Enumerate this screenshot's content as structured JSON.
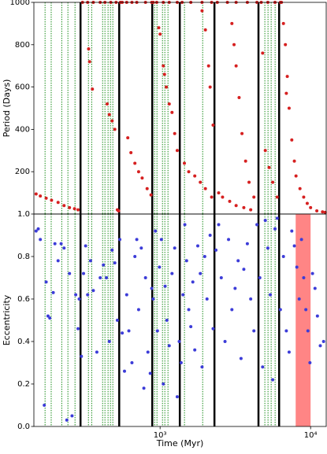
{
  "chart_data": [
    {
      "type": "scatter",
      "ylabel": "Period (Days)",
      "xscale": "log",
      "xlim": [
        145,
        12700
      ],
      "ylim": [
        0,
        1000
      ],
      "yticks": [
        200,
        400,
        600,
        800,
        1000
      ],
      "vlines_black": [
        296,
        535,
        887,
        1352,
        2297,
        4505,
        6180
      ],
      "vlines_green": [
        172,
        189,
        222,
        244,
        272,
        334,
        351,
        415,
        430,
        451,
        468,
        485,
        919,
        953,
        1037,
        1075,
        1128,
        1452,
        1918,
        4966,
        5212,
        5470,
        5810
      ],
      "series": [
        {
          "color": "#d62020",
          "x": [
            150,
            160,
            175,
            190,
            210,
            230,
            250,
            270,
            285,
            305,
            330,
            360,
            400,
            430,
            470,
            510,
            520,
            530,
            335,
            340,
            355,
            445,
            460,
            480,
            500,
            545,
            560,
            600,
            650,
            700,
            800,
            880,
            610,
            640,
            680,
            720,
            760,
            820,
            870,
            900,
            950,
            1050,
            1150,
            1300,
            980,
            1000,
            1050,
            1070,
            1100,
            1150,
            1200,
            1250,
            1300,
            1400,
            1600,
            1900,
            2200,
            1450,
            1550,
            1700,
            1850,
            2000,
            2200,
            1900,
            2000,
            2100,
            2150,
            2250,
            2400,
            2800,
            3200,
            3800,
            4400,
            2450,
            2600,
            2900,
            3200,
            3600,
            4000,
            3000,
            3100,
            3200,
            3350,
            3500,
            3700,
            3900,
            4200,
            4700,
            5200,
            5800,
            4800,
            5000,
            5300,
            5600,
            6000,
            6300,
            6400,
            6600,
            6800,
            6900,
            7000,
            7200,
            7500,
            7800,
            8000,
            8500,
            9000,
            9500,
            10000,
            11000,
            12000,
            12500
          ],
          "values": [
            95,
            85,
            75,
            65,
            55,
            40,
            30,
            25,
            20,
            1000,
            1000,
            1000,
            1000,
            1000,
            1000,
            1000,
            20,
            15,
            780,
            720,
            590,
            520,
            470,
            440,
            400,
            1000,
            1000,
            1000,
            1000,
            1000,
            1000,
            1000,
            360,
            290,
            240,
            200,
            170,
            120,
            90,
            1000,
            1000,
            1000,
            1000,
            1000,
            880,
            850,
            700,
            660,
            600,
            520,
            480,
            380,
            300,
            1000,
            1000,
            1000,
            1000,
            240,
            200,
            180,
            150,
            120,
            80,
            960,
            870,
            700,
            600,
            420,
            1000,
            1000,
            1000,
            1000,
            1000,
            100,
            80,
            60,
            40,
            30,
            20,
            900,
            800,
            700,
            550,
            380,
            250,
            150,
            80,
            1000,
            1000,
            1000,
            760,
            300,
            220,
            150,
            80,
            1000,
            1000,
            900,
            800,
            570,
            650,
            500,
            350,
            250,
            180,
            120,
            80,
            50,
            30,
            15,
            10,
            8
          ]
        }
      ]
    },
    {
      "type": "scatter",
      "ylabel": "Eccentricity",
      "xlabel": "Time (Myr)",
      "xscale": "log",
      "xlim": [
        145,
        12700
      ],
      "xticks": [
        {
          "value": 1000,
          "label": "10³"
        },
        {
          "value": 10000,
          "label": "10⁴"
        }
      ],
      "ylim": [
        0,
        1.0
      ],
      "yticks": [
        {
          "value": 0,
          "label": "0.0"
        },
        0.2,
        0.4,
        0.6,
        0.8,
        {
          "value": 1.0,
          "label": "1.0"
        }
      ],
      "vlines_black": [
        296,
        535,
        887,
        1352,
        2297,
        4505,
        6180
      ],
      "vlines_green": [
        172,
        189,
        222,
        244,
        272,
        334,
        351,
        415,
        430,
        451,
        468,
        485,
        919,
        953,
        1037,
        1075,
        1128,
        1452,
        1918,
        4966,
        5212,
        5470,
        5810
      ],
      "shaded_x": [
        7960,
        10000
      ],
      "shade_color": "#ff7070",
      "series": [
        {
          "color": "#3c3cd8",
          "x": [
            150,
            155,
            160,
            170,
            175,
            180,
            185,
            195,
            200,
            210,
            220,
            230,
            240,
            250,
            260,
            275,
            285,
            290,
            300,
            310,
            320,
            330,
            345,
            360,
            380,
            400,
            420,
            440,
            460,
            480,
            500,
            520,
            540,
            560,
            580,
            600,
            620,
            650,
            680,
            700,
            720,
            750,
            780,
            800,
            830,
            860,
            880,
            900,
            930,
            960,
            990,
            1020,
            1050,
            1080,
            1110,
            1150,
            1200,
            1250,
            1300,
            1340,
            1380,
            1420,
            1460,
            1500,
            1550,
            1600,
            1650,
            1700,
            1780,
            1850,
            1900,
            1980,
            2050,
            2150,
            2250,
            2350,
            2450,
            2550,
            2700,
            2850,
            3000,
            3150,
            3300,
            3450,
            3600,
            3800,
            4000,
            4200,
            4400,
            4600,
            4800,
            5000,
            5200,
            5400,
            5600,
            5800,
            6000,
            6300,
            6600,
            6900,
            7200,
            7500,
            7800,
            8100,
            8400,
            8700,
            9000,
            9300,
            9600,
            9900,
            10300,
            10700,
            11100,
            11600,
            12200
          ],
          "values": [
            0.92,
            0.93,
            0.88,
            0.1,
            0.68,
            0.52,
            0.51,
            0.63,
            0.86,
            0.78,
            0.86,
            0.84,
            0.03,
            0.72,
            0.05,
            0.62,
            0.46,
            0.6,
            0.33,
            0.72,
            0.85,
            0.62,
            0.78,
            0.64,
            0.35,
            0.7,
            0.76,
            0.7,
            0.4,
            0.83,
            0.77,
            0.5,
            0.88,
            0.44,
            0.26,
            0.62,
            0.45,
            0.3,
            0.8,
            0.88,
            0.55,
            0.84,
            0.18,
            0.7,
            0.35,
            0.25,
            0.65,
            0.6,
            0.92,
            0.45,
            0.75,
            0.88,
            0.2,
            0.66,
            0.5,
            0.38,
            0.72,
            0.84,
            0.14,
            0.4,
            0.3,
            0.62,
            0.95,
            0.78,
            0.55,
            0.47,
            0.68,
            0.36,
            0.85,
            0.72,
            0.28,
            0.8,
            0.6,
            0.9,
            0.46,
            0.83,
            0.95,
            0.7,
            0.4,
            0.88,
            0.55,
            0.65,
            0.78,
            0.32,
            0.74,
            0.86,
            0.6,
            0.45,
            0.95,
            0.7,
            0.28,
            0.97,
            0.84,
            0.62,
            0.22,
            0.93,
            0.98,
            0.55,
            0.8,
            0.45,
            0.35,
            0.92,
            0.85,
            0.75,
            0.6,
            0.88,
            0.7,
            0.55,
            0.45,
            0.3,
            0.72,
            0.65,
            0.52,
            0.38,
            0.4
          ]
        }
      ]
    }
  ]
}
